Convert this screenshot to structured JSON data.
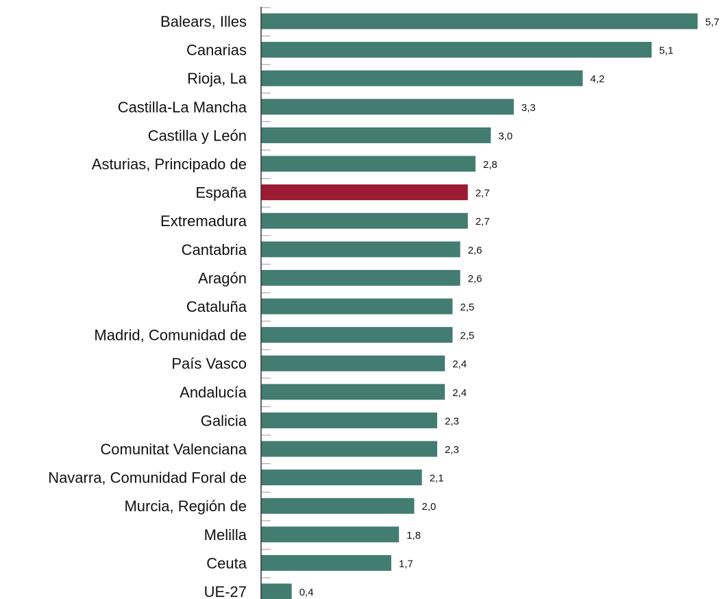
{
  "chart_data": {
    "type": "bar",
    "orientation": "horizontal",
    "title": "",
    "xlabel": "",
    "ylabel": "",
    "xlim": [
      0,
      5.7
    ],
    "grid": false,
    "legend": "none",
    "colors": {
      "default": "#437c70",
      "highlight": "#9b1b33"
    },
    "highlight_category": "España",
    "categories": [
      "Balears, Illes",
      "Canarias",
      "Rioja, La",
      "Castilla-La Mancha",
      "Castilla y León",
      "Asturias, Principado de",
      "España",
      "Extremadura",
      "Cantabria",
      "Aragón",
      "Cataluña",
      "Madrid, Comunidad de",
      "País Vasco",
      "Andalucía",
      "Galicia",
      "Comunitat Valenciana",
      "Navarra, Comunidad Foral de",
      "Murcia, Región de",
      "Melilla",
      "Ceuta",
      "UE-27"
    ],
    "values": [
      5.7,
      5.1,
      4.2,
      3.3,
      3.0,
      2.8,
      2.7,
      2.7,
      2.6,
      2.6,
      2.5,
      2.5,
      2.4,
      2.4,
      2.3,
      2.3,
      2.1,
      2.0,
      1.8,
      1.7,
      0.4
    ],
    "value_labels": [
      "5,7",
      "5,1",
      "4,2",
      "3,3",
      "3,0",
      "2,8",
      "2,7",
      "2,7",
      "2,6",
      "2,6",
      "2,5",
      "2,5",
      "2,4",
      "2,4",
      "2,3",
      "2,3",
      "2,1",
      "2,0",
      "1,8",
      "1,7",
      "0,4"
    ]
  }
}
